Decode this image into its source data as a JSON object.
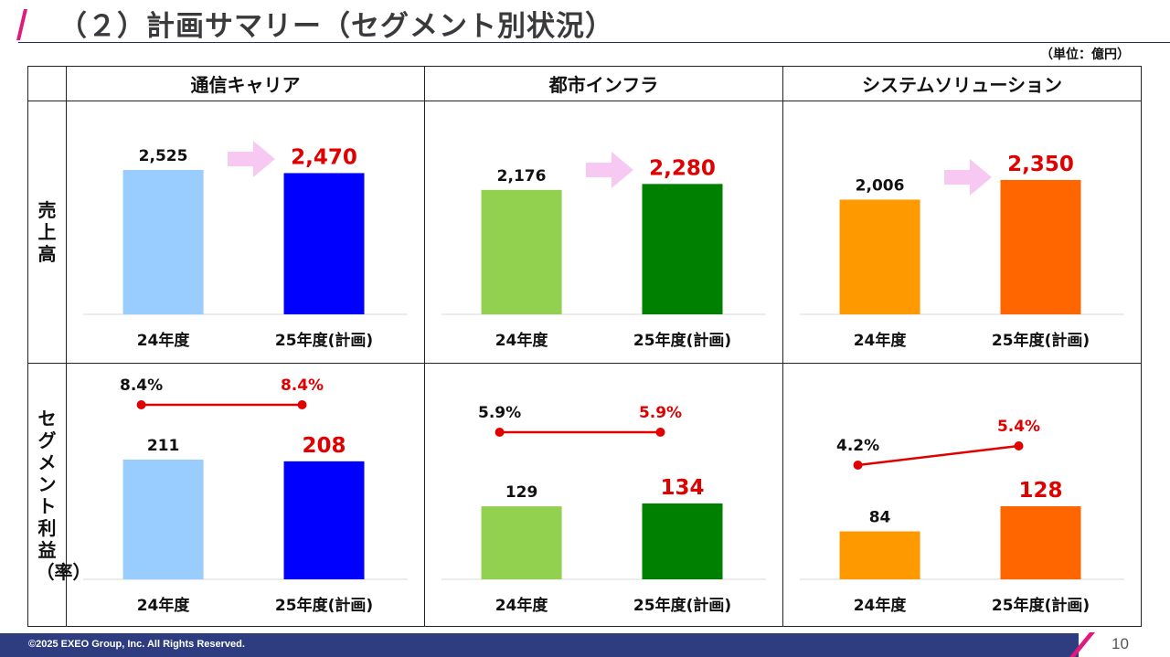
{
  "title": "（２）計画サマリー（セグメント別状況）",
  "unit": "（単位：億円）",
  "row_headers": [
    "売上高",
    "セグメント利益（率）"
  ],
  "columns": [
    "通信キャリア",
    "都市インフラ",
    "システムソリューション"
  ],
  "colors": {
    "title_slash": "#e0197d",
    "footer_bar": "#2e3d80",
    "arrow": "#f7c8f2",
    "highlight_value": "#e00000",
    "rate_line": "#e00000",
    "carrier_24": "#99ccff",
    "carrier_25": "#0000ff",
    "infra_24": "#92d050",
    "infra_25": "#008000",
    "solution_24": "#ff9900",
    "solution_25": "#ff6600"
  },
  "chart_data": [
    {
      "type": "bar",
      "segment": "通信キャリア",
      "metric": "売上高",
      "categories": [
        "24年度",
        "25年度(計画)"
      ],
      "values": [
        2525,
        2470
      ],
      "value_labels": [
        "2,525",
        "2,470"
      ]
    },
    {
      "type": "bar",
      "segment": "都市インフラ",
      "metric": "売上高",
      "categories": [
        "24年度",
        "25年度(計画)"
      ],
      "values": [
        2176,
        2280
      ],
      "value_labels": [
        "2,176",
        "2,280"
      ]
    },
    {
      "type": "bar",
      "segment": "システムソリューション",
      "metric": "売上高",
      "categories": [
        "24年度",
        "25年度(計画)"
      ],
      "values": [
        2006,
        2350
      ],
      "value_labels": [
        "2,006",
        "2,350"
      ]
    },
    {
      "type": "bar",
      "segment": "通信キャリア",
      "metric": "セグメント利益",
      "categories": [
        "24年度",
        "25年度(計画)"
      ],
      "values": [
        211,
        208
      ],
      "value_labels": [
        "211",
        "208"
      ],
      "rate": [
        8.4,
        8.4
      ],
      "rate_labels": [
        "8.4%",
        "8.4%"
      ]
    },
    {
      "type": "bar",
      "segment": "都市インフラ",
      "metric": "セグメント利益",
      "categories": [
        "24年度",
        "25年度(計画)"
      ],
      "values": [
        129,
        134
      ],
      "value_labels": [
        "129",
        "134"
      ],
      "rate": [
        5.9,
        5.9
      ],
      "rate_labels": [
        "5.9%",
        "5.9%"
      ]
    },
    {
      "type": "bar",
      "segment": "システムソリューション",
      "metric": "セグメント利益",
      "categories": [
        "24年度",
        "25年度(計画)"
      ],
      "values": [
        84,
        128
      ],
      "value_labels": [
        "84",
        "128"
      ],
      "rate": [
        4.2,
        5.4
      ],
      "rate_labels": [
        "4.2%",
        "5.4%"
      ]
    }
  ],
  "footer": {
    "copyright": "©2025 EXEO Group, Inc. All Rights Reserved.",
    "page": "10"
  }
}
